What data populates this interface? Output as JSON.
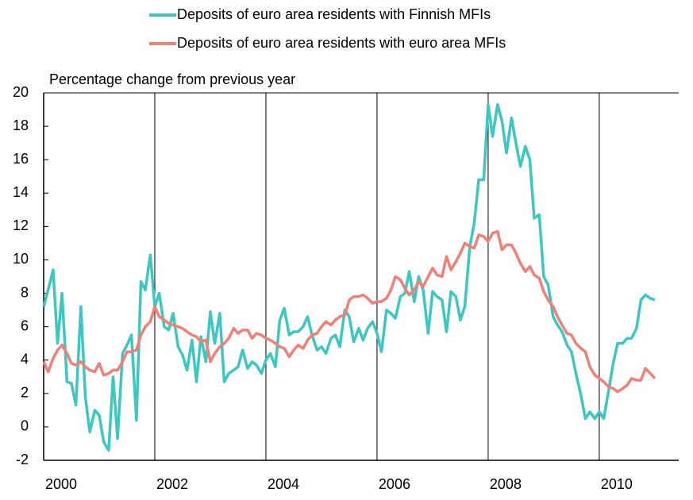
{
  "chart_data": {
    "type": "line",
    "y_axis_label": "Percentage change from previous year",
    "legend": "top",
    "xlim": [
      2000,
      2011.43
    ],
    "xticks": [
      2000,
      2002,
      2004,
      2006,
      2008,
      2010
    ],
    "ylim": [
      -2,
      20
    ],
    "yticks": [
      -2,
      0,
      2,
      4,
      6,
      8,
      10,
      12,
      14,
      16,
      18,
      20
    ],
    "grid": "x",
    "x": [
      2000,
      2000.08,
      2000.17,
      2000.25,
      2000.33,
      2000.42,
      2000.5,
      2000.58,
      2000.67,
      2000.75,
      2000.83,
      2000.92,
      2001,
      2001.08,
      2001.17,
      2001.25,
      2001.33,
      2001.42,
      2001.5,
      2001.58,
      2001.67,
      2001.75,
      2001.83,
      2001.92,
      2002,
      2002.08,
      2002.17,
      2002.25,
      2002.33,
      2002.42,
      2002.5,
      2002.58,
      2002.67,
      2002.75,
      2002.83,
      2002.92,
      2003,
      2003.08,
      2003.17,
      2003.25,
      2003.33,
      2003.42,
      2003.5,
      2003.58,
      2003.67,
      2003.75,
      2003.83,
      2003.92,
      2004,
      2004.08,
      2004.17,
      2004.25,
      2004.33,
      2004.42,
      2004.5,
      2004.58,
      2004.67,
      2004.75,
      2004.83,
      2004.92,
      2005,
      2005.08,
      2005.17,
      2005.25,
      2005.33,
      2005.42,
      2005.5,
      2005.58,
      2005.67,
      2005.75,
      2005.83,
      2005.92,
      2006,
      2006.08,
      2006.17,
      2006.25,
      2006.33,
      2006.42,
      2006.5,
      2006.58,
      2006.67,
      2006.75,
      2006.83,
      2006.92,
      2007,
      2007.08,
      2007.17,
      2007.25,
      2007.33,
      2007.42,
      2007.5,
      2007.58,
      2007.67,
      2007.75,
      2007.83,
      2007.92,
      2008,
      2008.08,
      2008.17,
      2008.25,
      2008.33,
      2008.42,
      2008.5,
      2008.58,
      2008.67,
      2008.75,
      2008.83,
      2008.92,
      2009,
      2009.08,
      2009.17,
      2009.25,
      2009.33,
      2009.42,
      2009.5,
      2009.58,
      2009.67,
      2009.75,
      2009.83,
      2009.92,
      2010,
      2010.08,
      2010.17,
      2010.25,
      2010.33,
      2010.42,
      2010.5,
      2010.58,
      2010.67,
      2010.75,
      2010.83,
      2010.92,
      2011
    ],
    "series": [
      {
        "name": "Deposits of euro area residents with Finnish MFIs",
        "color": "#3cc8c0",
        "values": [
          7.2,
          8.2,
          9.4,
          5.0,
          8.0,
          2.7,
          2.6,
          1.3,
          7.2,
          1.8,
          -0.3,
          1.0,
          0.7,
          -0.9,
          -1.4,
          3.0,
          -0.7,
          4.4,
          4.9,
          5.5,
          0.4,
          8.7,
          8.2,
          10.3,
          7.2,
          8.0,
          6.0,
          5.8,
          6.8,
          4.8,
          4.3,
          3.4,
          5.2,
          2.7,
          5.4,
          3.9,
          6.9,
          5.0,
          6.8,
          2.7,
          3.2,
          3.4,
          3.6,
          4.6,
          3.5,
          3.9,
          3.7,
          3.2,
          4.0,
          4.4,
          3.6,
          6.4,
          7.1,
          5.5,
          5.7,
          5.7,
          6.0,
          6.6,
          5.5,
          4.6,
          4.8,
          4.4,
          5.3,
          5.5,
          4.8,
          7.0,
          6.6,
          5.1,
          5.9,
          5.2,
          5.9,
          6.3,
          5.6,
          4.5,
          7.0,
          6.8,
          6.5,
          7.8,
          8.0,
          9.3,
          7.5,
          9.0,
          8.2,
          5.6,
          8.1,
          7.8,
          7.6,
          5.7,
          8.1,
          7.8,
          6.4,
          7.2,
          10.8,
          12.2,
          14.8,
          14.8,
          19.3,
          17.4,
          19.3,
          18.3,
          16.4,
          18.5,
          17.0,
          15.6,
          16.8,
          16.0,
          12.5,
          12.7,
          9.0,
          8.5,
          6.6,
          6.1,
          5.7,
          4.9,
          4.5,
          3.2,
          1.9,
          0.5,
          0.9,
          0.5,
          0.9,
          0.5,
          2.2,
          3.8,
          5.0,
          5.0,
          5.3,
          5.3,
          5.9,
          7.6,
          7.9,
          7.7,
          7.6
        ]
      },
      {
        "name": "Deposits of euro area residents with euro area MFIs",
        "color": "#f08078",
        "values": [
          3.9,
          3.3,
          4.1,
          4.6,
          4.9,
          4.4,
          3.8,
          3.7,
          3.9,
          3.6,
          3.4,
          3.3,
          3.8,
          3.1,
          3.2,
          3.4,
          3.4,
          3.9,
          4.5,
          4.5,
          4.6,
          5.5,
          6.0,
          6.3,
          7.2,
          6.6,
          6.4,
          6.2,
          6.1,
          6.0,
          5.9,
          5.7,
          5.5,
          5.4,
          5.1,
          5.2,
          3.9,
          4.4,
          4.8,
          5.0,
          5.3,
          5.9,
          5.6,
          5.8,
          5.8,
          5.3,
          5.6,
          5.5,
          5.3,
          5.2,
          5.0,
          4.8,
          4.7,
          4.2,
          4.6,
          4.9,
          4.7,
          5.2,
          5.5,
          5.6,
          6.0,
          6.3,
          6.1,
          6.4,
          6.6,
          6.7,
          7.6,
          7.8,
          7.8,
          7.9,
          7.7,
          7.4,
          7.5,
          7.5,
          7.7,
          8.2,
          9.0,
          8.8,
          8.3,
          7.9,
          8.2,
          8.7,
          8.4,
          9.0,
          9.5,
          9.1,
          9.0,
          10.2,
          9.4,
          9.9,
          10.4,
          11.0,
          10.8,
          10.7,
          11.5,
          11.4,
          11.1,
          11.6,
          11.7,
          10.6,
          10.9,
          10.9,
          10.4,
          9.8,
          9.3,
          9.6,
          9.1,
          8.9,
          8.1,
          7.6,
          7.2,
          6.6,
          6.1,
          5.6,
          5.5,
          5.0,
          4.7,
          4.5,
          3.6,
          3.1,
          2.9,
          2.7,
          2.4,
          2.3,
          2.1,
          2.3,
          2.5,
          2.9,
          2.8,
          2.8,
          3.5,
          3.2,
          2.9
        ]
      }
    ]
  }
}
